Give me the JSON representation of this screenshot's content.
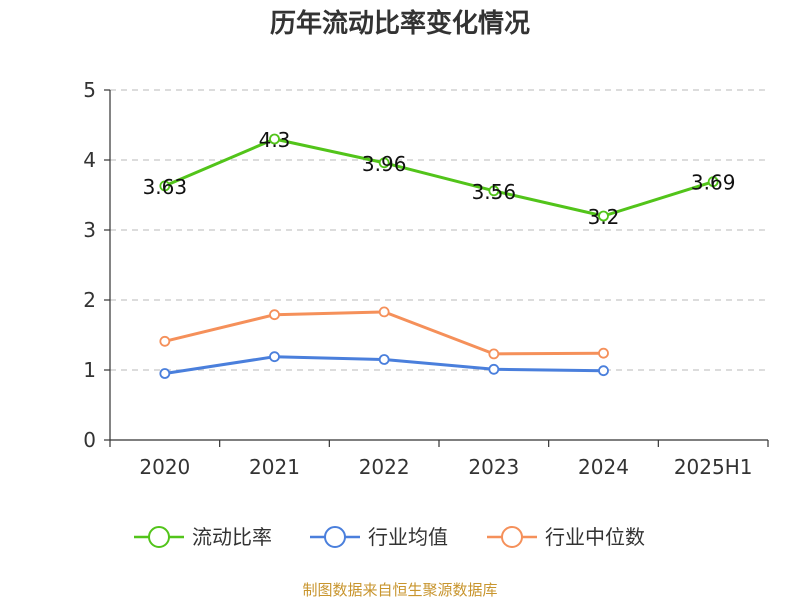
{
  "chart_data": {
    "type": "line",
    "title": "历年流动比率变化情况",
    "categories": [
      "2020",
      "2021",
      "2022",
      "2023",
      "2024",
      "2025H1"
    ],
    "ylim": [
      0,
      5
    ],
    "yticks": [
      "0",
      "1",
      "2",
      "3",
      "4",
      "5"
    ],
    "grid": true,
    "legend_position": "bottom",
    "series": [
      {
        "name": "流动比率",
        "color": "#52c41a",
        "values": [
          3.63,
          4.3,
          3.96,
          3.56,
          3.2,
          3.69
        ],
        "labels": [
          "3.63",
          "4.3",
          "3.96",
          "3.56",
          "3.2",
          "3.69"
        ]
      },
      {
        "name": "行业均值",
        "color": "#4a7fdc",
        "values": [
          0.95,
          1.19,
          1.15,
          1.01,
          0.99,
          null
        ]
      },
      {
        "name": "行业中位数",
        "color": "#f5905a",
        "values": [
          1.41,
          1.79,
          1.83,
          1.23,
          1.24,
          null
        ]
      }
    ]
  },
  "source": "制图数据来自恒生聚源数据库"
}
